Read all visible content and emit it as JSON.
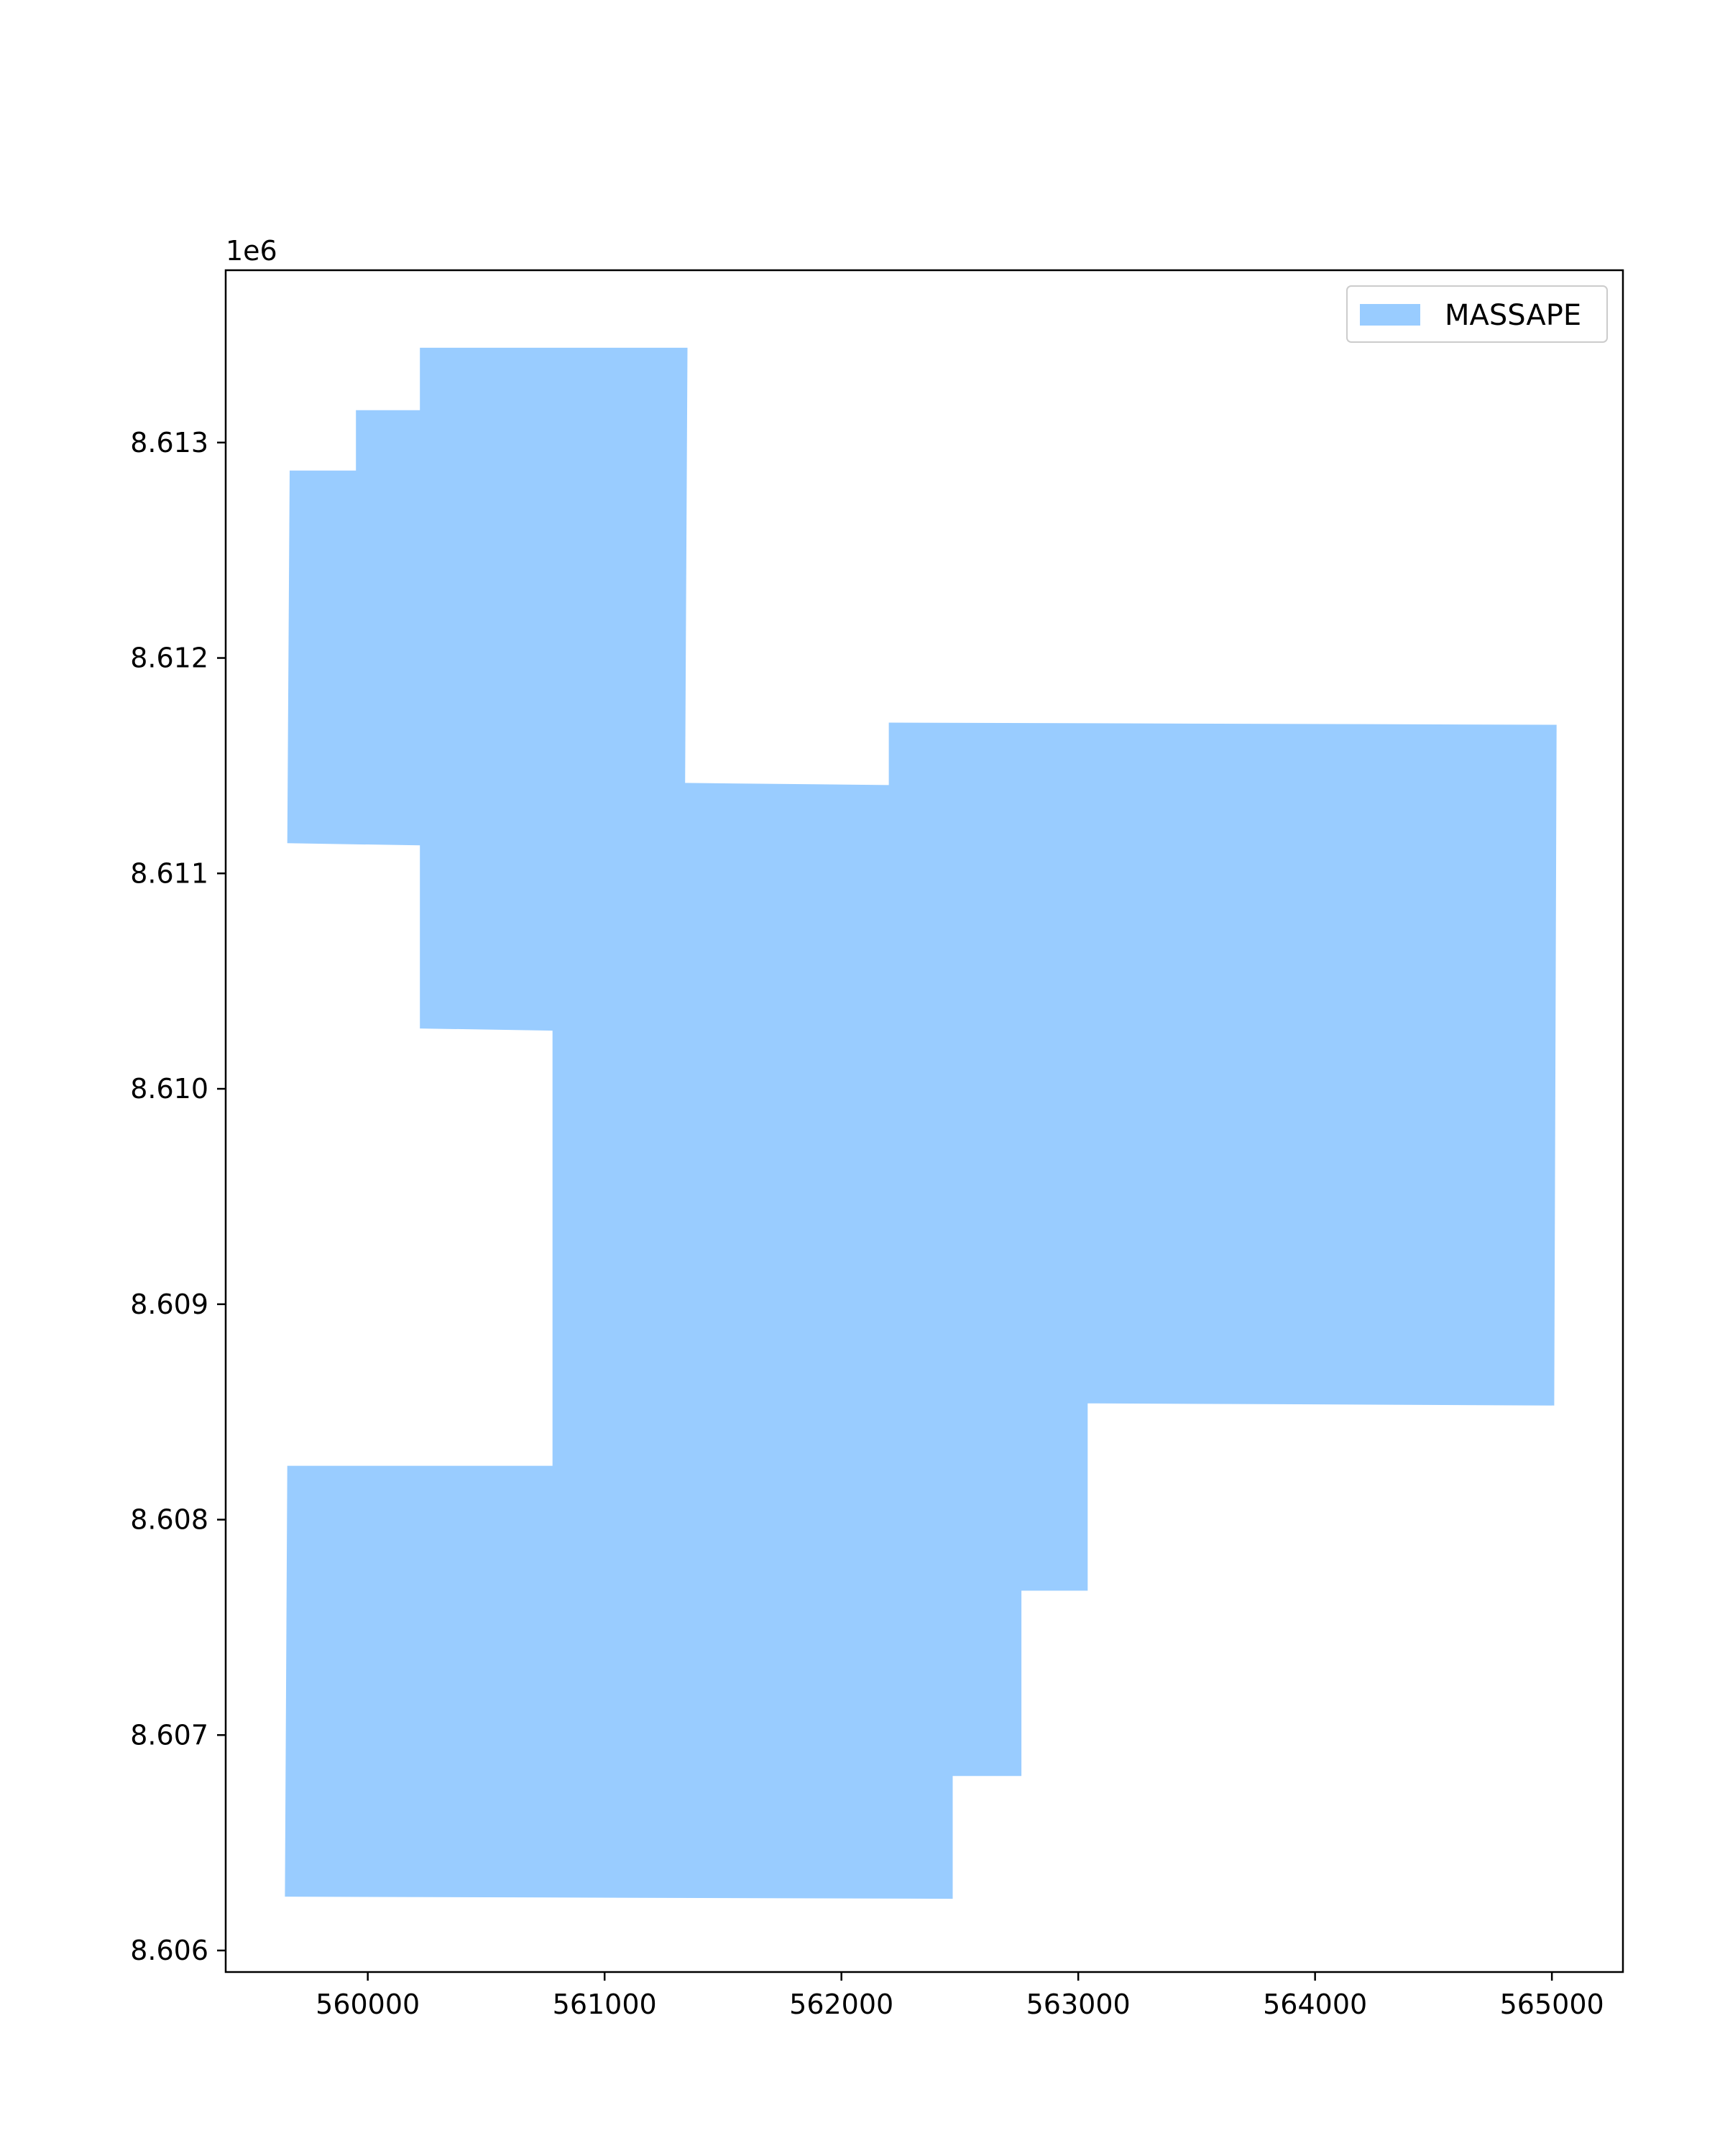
{
  "chart_data": {
    "type": "map",
    "title": "",
    "xlabel": "",
    "ylabel": "",
    "offset_text": "1e6",
    "xlim": [
      559400,
      565300
    ],
    "ylim": [
      8605900,
      8613800
    ],
    "xticks": [
      560000,
      561000,
      562000,
      563000,
      564000,
      565000
    ],
    "xtick_labels": [
      "560000",
      "561000",
      "562000",
      "563000",
      "564000",
      "565000"
    ],
    "yticks": [
      8606000,
      8607000,
      8608000,
      8609000,
      8610000,
      8611000,
      8612000,
      8613000
    ],
    "ytick_labels": [
      "8.606",
      "8.607",
      "8.608",
      "8.609",
      "8.610",
      "8.611",
      "8.612",
      "8.613"
    ],
    "grid": false,
    "legend": {
      "placement": "top-right",
      "entries": [
        {
          "label": "MASSAPE",
          "color": "#99ccff"
        }
      ]
    },
    "series": [
      {
        "name": "MASSAPE",
        "color": "#99ccff",
        "polygon": [
          [
            560220,
            8613440
          ],
          [
            561350,
            8613440
          ],
          [
            561340,
            8611420
          ],
          [
            562200,
            8611410
          ],
          [
            562200,
            8611700
          ],
          [
            565020,
            8611690
          ],
          [
            565010,
            8608530
          ],
          [
            563040,
            8608540
          ],
          [
            563040,
            8607670
          ],
          [
            562760,
            8607670
          ],
          [
            562760,
            8606810
          ],
          [
            562470,
            8606810
          ],
          [
            562470,
            8606240
          ],
          [
            559650,
            8606250
          ],
          [
            559660,
            8608250
          ],
          [
            560780,
            8608250
          ],
          [
            560780,
            8610270
          ],
          [
            560220,
            8610280
          ],
          [
            560220,
            8611130
          ],
          [
            559660,
            8611140
          ],
          [
            559670,
            8612870
          ],
          [
            559950,
            8612870
          ],
          [
            559950,
            8613150
          ],
          [
            560220,
            8613150
          ]
        ]
      }
    ]
  }
}
